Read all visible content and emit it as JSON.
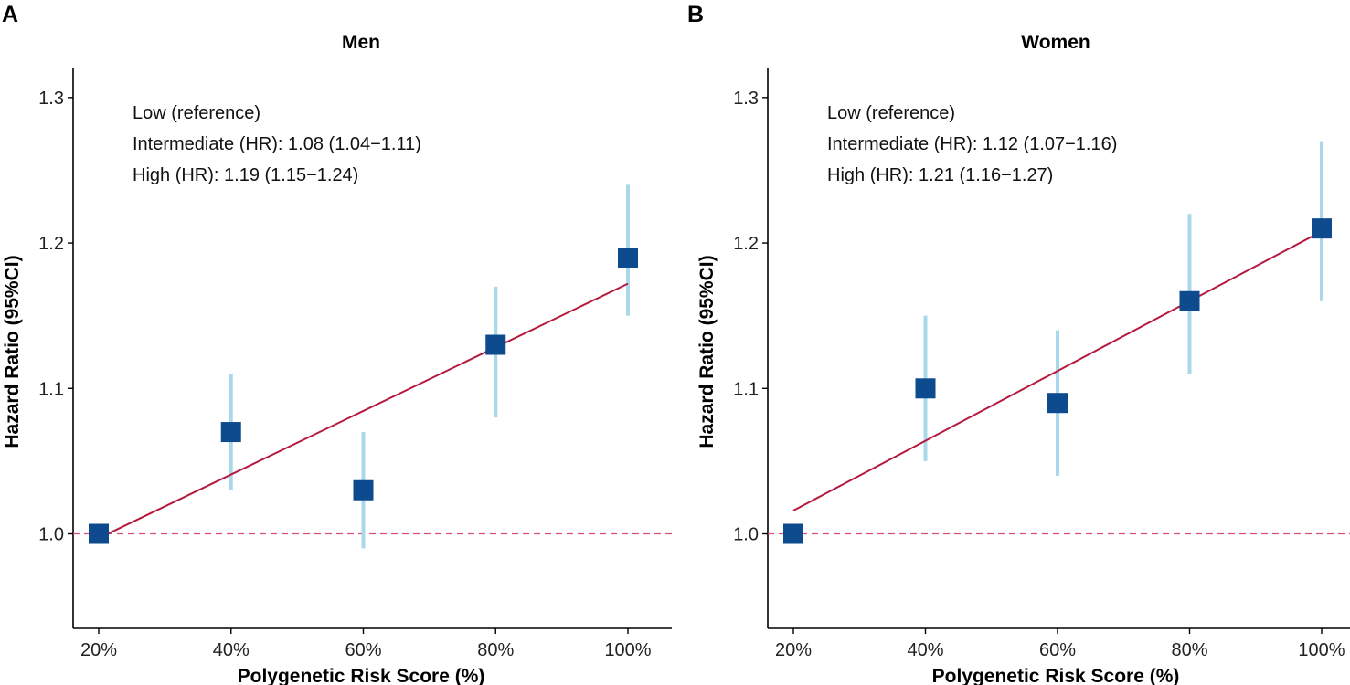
{
  "chart_data": [
    {
      "panel": "A",
      "type": "scatter",
      "title": "Men",
      "xlabel": "Polygenetic Risk Score (%)",
      "ylabel": "Hazard Ratio (95%CI)",
      "x_tick_labels": [
        "20%",
        "40%",
        "60%",
        "80%",
        "100%"
      ],
      "y_tick_labels": [
        "1.0",
        "1.1",
        "1.2",
        "1.3"
      ],
      "y_ticks": [
        1.0,
        1.1,
        1.2,
        1.3
      ],
      "ylim": [
        0.935,
        1.32
      ],
      "x": [
        20,
        40,
        60,
        80,
        100
      ],
      "hr": [
        1.0,
        1.07,
        1.03,
        1.13,
        1.19
      ],
      "ci_lower": [
        1.0,
        1.03,
        0.99,
        1.08,
        1.15
      ],
      "ci_upper": [
        1.0,
        1.11,
        1.07,
        1.17,
        1.24
      ],
      "trend_line": {
        "x": [
          20,
          100
        ],
        "y": [
          0.997,
          1.172
        ]
      },
      "reference_line": 1.0,
      "annotations": [
        "Low (reference)",
        "Intermediate (HR): 1.08 (1.04−1.11)",
        "High (HR): 1.19 (1.15−1.24)"
      ]
    },
    {
      "panel": "B",
      "type": "scatter",
      "title": "Women",
      "xlabel": "Polygenetic Risk Score (%)",
      "ylabel": "Hazard Ratio (95%CI)",
      "x_tick_labels": [
        "20%",
        "40%",
        "60%",
        "80%",
        "100%"
      ],
      "y_tick_labels": [
        "1.0",
        "1.1",
        "1.2",
        "1.3"
      ],
      "y_ticks": [
        1.0,
        1.1,
        1.2,
        1.3
      ],
      "ylim": [
        0.935,
        1.32
      ],
      "x": [
        20,
        40,
        60,
        80,
        100
      ],
      "hr": [
        1.0,
        1.1,
        1.09,
        1.16,
        1.21
      ],
      "ci_lower": [
        1.0,
        1.05,
        1.04,
        1.11,
        1.16
      ],
      "ci_upper": [
        1.0,
        1.15,
        1.14,
        1.22,
        1.27
      ],
      "trend_line": {
        "x": [
          20,
          100
        ],
        "y": [
          1.016,
          1.208
        ]
      },
      "reference_line": 1.0,
      "annotations": [
        "Low (reference)",
        "Intermediate (HR): 1.12 (1.07−1.16)",
        "High (HR): 1.21 (1.16−1.27)"
      ]
    }
  ],
  "colors": {
    "marker": "#0d4a8e",
    "error_bar": "#a8d8ea",
    "trend_line": "#b5193d",
    "reference_line": "#d94f72",
    "axis": "#000000"
  }
}
